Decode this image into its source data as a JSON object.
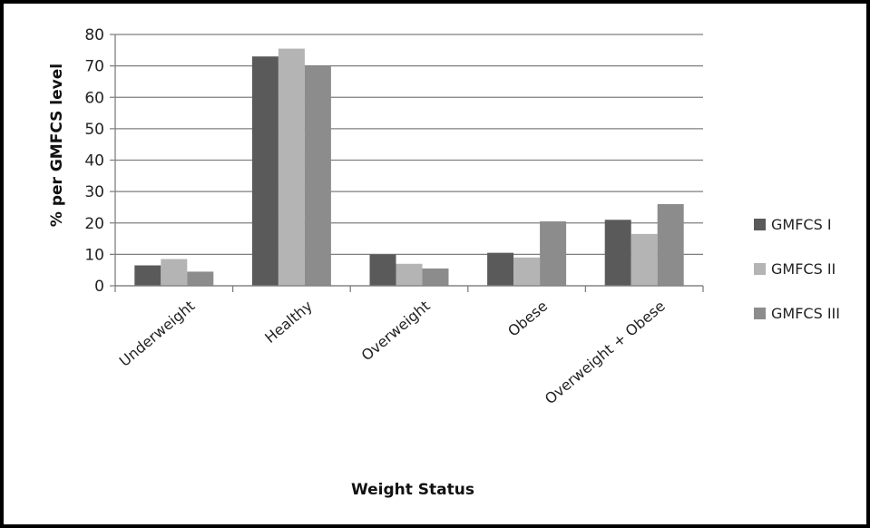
{
  "chart_data": {
    "type": "bar",
    "title": "",
    "xlabel": "Weight Status",
    "ylabel": "% per GMFCS level",
    "ylim": [
      0,
      80
    ],
    "yticks": [
      0,
      10,
      20,
      30,
      40,
      50,
      60,
      70,
      80
    ],
    "grid": true,
    "legend_position": "right",
    "categories": [
      "Underweight",
      "Healthy",
      "Overweight",
      "Obese",
      "Overweight + Obese"
    ],
    "series": [
      {
        "name": "GMFCS I",
        "color": "#5a5a5a",
        "values": [
          6.5,
          73,
          10,
          10.5,
          21
        ]
      },
      {
        "name": "GMFCS II",
        "color": "#b4b4b4",
        "values": [
          8.5,
          75.5,
          7,
          9,
          16.5
        ]
      },
      {
        "name": "GMFCS III",
        "color": "#8c8c8c",
        "values": [
          4.5,
          70,
          5.5,
          20.5,
          26
        ]
      }
    ]
  }
}
